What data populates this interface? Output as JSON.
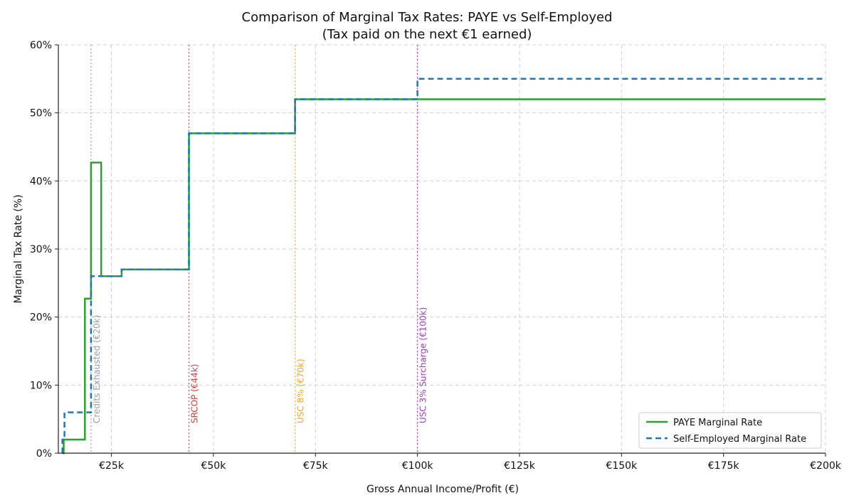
{
  "chart_data": {
    "type": "line",
    "title": "Comparison of Marginal Tax Rates: PAYE vs Self-Employed",
    "subtitle": "(Tax paid on the next €1 earned)",
    "xlabel": "Gross Annual Income/Profit (€)",
    "ylabel": "Marginal Tax Rate (%)",
    "xlim": [
      12000,
      200000
    ],
    "ylim": [
      0,
      60
    ],
    "x_ticks": [
      25000,
      50000,
      75000,
      100000,
      125000,
      150000,
      175000,
      200000
    ],
    "x_tick_labels": [
      "€25k",
      "€50k",
      "€75k",
      "€100k",
      "€125k",
      "€150k",
      "€175k",
      "€200k"
    ],
    "y_ticks": [
      0,
      10,
      20,
      30,
      40,
      50,
      60
    ],
    "y_tick_labels": [
      "0%",
      "10%",
      "20%",
      "30%",
      "40%",
      "50%",
      "60%"
    ],
    "grid": true,
    "legend_position": "bottom-right",
    "series": [
      {
        "name": "PAYE Marginal Rate",
        "color": "#2ca02c",
        "style": "solid",
        "points": [
          [
            13000,
            0
          ],
          [
            13300,
            0
          ],
          [
            13300,
            2
          ],
          [
            18500,
            2
          ],
          [
            18500,
            22.7
          ],
          [
            20000,
            22.7
          ],
          [
            20000,
            42.7
          ],
          [
            22500,
            42.7
          ],
          [
            22500,
            26
          ],
          [
            27500,
            26
          ],
          [
            27500,
            27
          ],
          [
            44000,
            27
          ],
          [
            44000,
            47
          ],
          [
            70000,
            47
          ],
          [
            70000,
            52
          ],
          [
            200000,
            52
          ]
        ]
      },
      {
        "name": "Self-Employed Marginal Rate",
        "color": "#1f77b4",
        "style": "dashed",
        "points": [
          [
            13000,
            0
          ],
          [
            13000,
            2
          ],
          [
            13500,
            2
          ],
          [
            13500,
            6
          ],
          [
            20000,
            6
          ],
          [
            20000,
            26
          ],
          [
            27500,
            26
          ],
          [
            27500,
            27
          ],
          [
            44000,
            27
          ],
          [
            44000,
            47
          ],
          [
            70000,
            47
          ],
          [
            70000,
            52
          ],
          [
            100000,
            52
          ],
          [
            100000,
            55
          ],
          [
            200000,
            55
          ]
        ]
      }
    ],
    "vertical_lines": [
      {
        "x": 20000,
        "label": "Credits Exhausted (€20k)",
        "color": "#9e9e9e"
      },
      {
        "x": 44000,
        "label": "SRCOP (€44k)",
        "color": "#e53935"
      },
      {
        "x": 70000,
        "label": "USC 8% (€70k)",
        "color": "#f5a623"
      },
      {
        "x": 100000,
        "label": "USC 3% Surcharge (€100k)",
        "color": "#a23cbf"
      }
    ]
  }
}
